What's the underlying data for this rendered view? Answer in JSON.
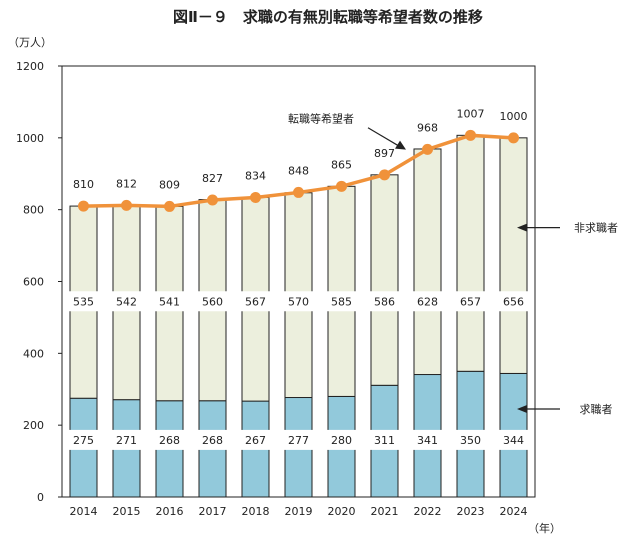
{
  "chart_data": {
    "type": "bar",
    "title": "図Ⅱ－９　求職の有無別転職等希望者数の推移",
    "y_unit": "（万人）",
    "x_unit": "（年）",
    "ylim": [
      0,
      1200
    ],
    "yticks": [
      0,
      200,
      400,
      600,
      800,
      1000,
      1200
    ],
    "grid": false,
    "categories": [
      "2014",
      "2015",
      "2016",
      "2017",
      "2018",
      "2019",
      "2020",
      "2021",
      "2022",
      "2023",
      "2024"
    ],
    "series": [
      {
        "name": "求職者",
        "type": "bar",
        "stack": "main",
        "color": "#92c9db",
        "values": [
          275,
          271,
          268,
          268,
          267,
          277,
          280,
          311,
          341,
          350,
          344
        ]
      },
      {
        "name": "非求職者",
        "type": "bar",
        "stack": "main",
        "color": "#ecefdd",
        "values": [
          535,
          542,
          541,
          560,
          567,
          570,
          585,
          586,
          628,
          657,
          656
        ]
      },
      {
        "name": "転職等希望者",
        "type": "line",
        "color": "#f0923a",
        "values": [
          810,
          812,
          809,
          827,
          834,
          848,
          865,
          897,
          968,
          1007,
          1000
        ]
      }
    ]
  }
}
